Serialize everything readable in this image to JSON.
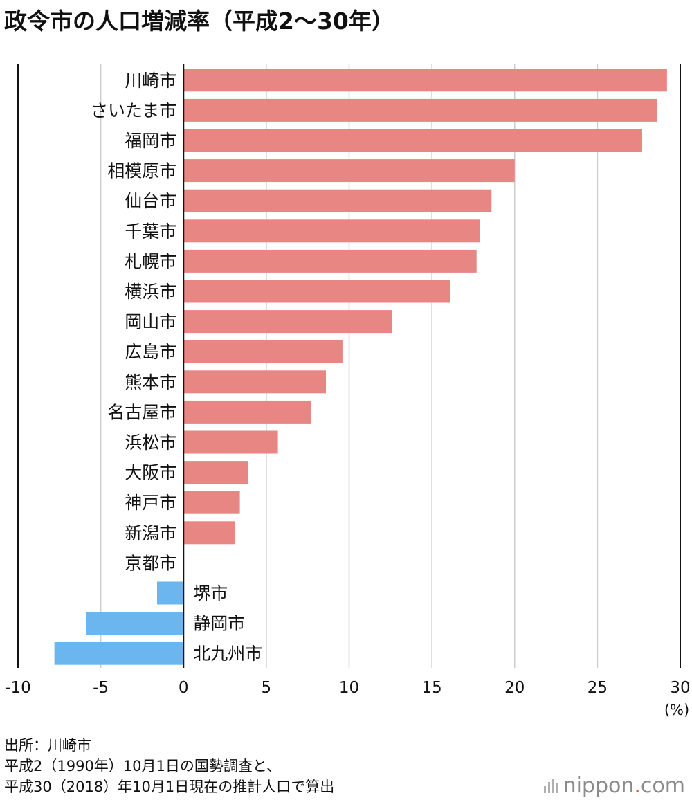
{
  "title": "政令市の人口増減率（平成2〜30年）",
  "source_lines": [
    "出所：川崎市",
    "平成2（1990年）10月1日の国勢調査と、",
    "平成30（2018）年10月1日現在の推計人口で算出"
  ],
  "logo": {
    "main": "nippon",
    "dot": ".",
    "suffix": "com"
  },
  "colors": {
    "positive": "#e88683",
    "negative": "#6bb6ee",
    "grid": "#cccccc",
    "axis": "#111111"
  },
  "chart_data": {
    "type": "bar",
    "orientation": "horizontal",
    "title": "政令市の人口増減率（平成2〜30年）",
    "unit": "(%)",
    "xlim": [
      -10,
      30
    ],
    "xticks": [
      -10,
      -5,
      0,
      5,
      10,
      15,
      20,
      25,
      30
    ],
    "xtick_labels": [
      "-10",
      "-5",
      "0",
      "5",
      "10",
      "15",
      "20",
      "25",
      "30"
    ],
    "grid": true,
    "categories": [
      "川崎市",
      "さいたま市",
      "福岡市",
      "相模原市",
      "仙台市",
      "千葉市",
      "札幌市",
      "横浜市",
      "岡山市",
      "広島市",
      "熊本市",
      "名古屋市",
      "浜松市",
      "大阪市",
      "神戸市",
      "新潟市",
      "京都市",
      "堺市",
      "静岡市",
      "北九州市"
    ],
    "values": [
      29.2,
      28.6,
      27.7,
      20.0,
      18.6,
      17.9,
      17.7,
      16.1,
      12.6,
      9.6,
      8.6,
      7.7,
      5.7,
      3.9,
      3.4,
      3.1,
      0.0,
      -1.6,
      -5.9,
      -7.8
    ]
  }
}
